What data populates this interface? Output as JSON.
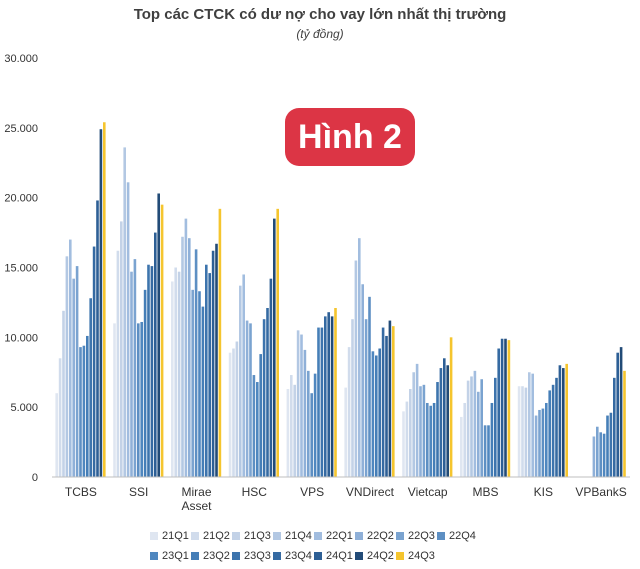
{
  "chart_data": {
    "type": "bar",
    "title": "Top các CTCK có dư nợ cho vay lớn nhất thị trường",
    "subtitle": "(tỷ đồng)",
    "ylim": [
      0,
      30000
    ],
    "yticks": [
      "0",
      "5.000",
      "10.000",
      "15.000",
      "20.000",
      "25.000",
      "30.000"
    ],
    "grid": false,
    "legend_position": "bottom",
    "categories": [
      "TCBS",
      "SSI",
      "Mirae\nAsset",
      "HSC",
      "VPS",
      "VNDirect",
      "Vietcap",
      "MBS",
      "KIS",
      "VPBankS"
    ],
    "series": [
      {
        "name": "21Q1",
        "color": "#dfe6f1",
        "values": [
          6000,
          11000,
          14000,
          8900,
          6300,
          6400,
          4700,
          4300,
          6500,
          null
        ]
      },
      {
        "name": "21Q2",
        "color": "#d1dcec",
        "values": [
          8500,
          16200,
          15000,
          9200,
          7300,
          9300,
          5400,
          5300,
          6500,
          null
        ]
      },
      {
        "name": "21Q3",
        "color": "#c3d2e7",
        "values": [
          11900,
          18300,
          14700,
          9700,
          6600,
          11300,
          6300,
          6900,
          6400,
          null
        ]
      },
      {
        "name": "21Q4",
        "color": "#b3c8e3",
        "values": [
          15800,
          23600,
          17200,
          13700,
          10500,
          15500,
          7500,
          7200,
          7500,
          null
        ]
      },
      {
        "name": "22Q1",
        "color": "#a2bddf",
        "values": [
          17000,
          21100,
          18500,
          14500,
          10200,
          17100,
          8100,
          7600,
          7400,
          null
        ]
      },
      {
        "name": "22Q2",
        "color": "#8fb0d8",
        "values": [
          14200,
          14700,
          17100,
          11200,
          9100,
          13800,
          6500,
          6100,
          4400,
          2900
        ]
      },
      {
        "name": "22Q3",
        "color": "#7aa3d0",
        "values": [
          15100,
          15600,
          13400,
          11000,
          7600,
          11300,
          6600,
          7000,
          4800,
          3600
        ]
      },
      {
        "name": "22Q4",
        "color": "#5d8fc3",
        "values": [
          9300,
          11000,
          16300,
          7300,
          6000,
          12900,
          5300,
          3700,
          4900,
          3200
        ]
      },
      {
        "name": "23Q1",
        "color": "#4f87bf",
        "values": [
          9400,
          11100,
          13300,
          6800,
          7400,
          9000,
          5100,
          3700,
          5300,
          3100
        ]
      },
      {
        "name": "23Q2",
        "color": "#457eb7",
        "values": [
          10100,
          13400,
          12200,
          8800,
          10700,
          8700,
          5300,
          5300,
          6200,
          4400
        ]
      },
      {
        "name": "23Q3",
        "color": "#3d74ad",
        "values": [
          12800,
          15200,
          15200,
          11300,
          10700,
          9200,
          6800,
          7100,
          6600,
          4600
        ]
      },
      {
        "name": "23Q4",
        "color": "#356aa2",
        "values": [
          16500,
          15100,
          14600,
          12100,
          11500,
          10700,
          7800,
          9200,
          7100,
          7100
        ]
      },
      {
        "name": "24Q1",
        "color": "#2d5f95",
        "values": [
          19800,
          17500,
          16200,
          14200,
          11800,
          10100,
          8500,
          9900,
          8000,
          8900
        ]
      },
      {
        "name": "24Q2",
        "color": "#224b77",
        "values": [
          24900,
          20300,
          16700,
          18500,
          11500,
          11200,
          8000,
          9900,
          7800,
          9300
        ]
      },
      {
        "name": "24Q3",
        "color": "#f5c52e",
        "values": [
          25400,
          19500,
          19200,
          19200,
          12100,
          10800,
          10000,
          9800,
          8100,
          7600
        ]
      }
    ]
  }
}
